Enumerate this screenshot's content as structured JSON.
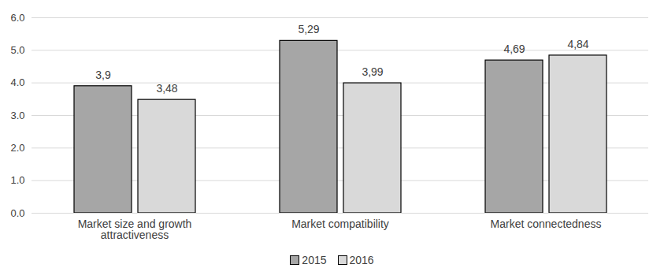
{
  "chart_data": {
    "type": "bar",
    "categories": [
      "Market size and growth attractiveness",
      "Market compatibility",
      "Market connectedness"
    ],
    "series": [
      {
        "name": "2015",
        "color": "#a6a6a6",
        "values": [
          3.9,
          5.29,
          4.69
        ],
        "value_labels": [
          "3,9",
          "5,29",
          "4,69"
        ]
      },
      {
        "name": "2016",
        "color": "#d9d9d9",
        "values": [
          3.48,
          3.99,
          4.84
        ],
        "value_labels": [
          "3,48",
          "3,99",
          "4,84"
        ]
      }
    ],
    "ylim": [
      0,
      6
    ],
    "yticks": [
      0,
      1,
      2,
      3,
      4,
      5,
      6
    ],
    "grid": true,
    "data_labels": true,
    "legend": "bottom"
  }
}
